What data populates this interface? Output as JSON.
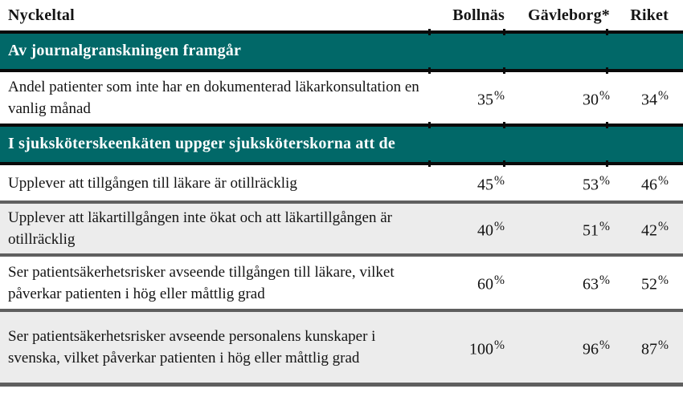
{
  "table": {
    "columns": [
      "Nyckeltal",
      "Bollnäs",
      "Gävleborg*",
      "Riket"
    ],
    "sections": [
      {
        "header": "Av journalgranskningen framgår",
        "rows": [
          {
            "label": "Andel patienter som inte har en dokumenterad läkarkonsultation en vanlig månad",
            "values": [
              "35%",
              "30%",
              "34%"
            ]
          }
        ]
      },
      {
        "header": "I sjuksköterskeenkäten uppger sjuksköterskorna att de",
        "rows": [
          {
            "label": "Upplever att tillgången till läkare är otillräcklig",
            "values": [
              "45%",
              "53%",
              "46%"
            ]
          },
          {
            "label": "Upplever att läkartillgången inte ökat och att läkartillgången är otillräcklig",
            "values": [
              "40%",
              "51%",
              "42%"
            ]
          },
          {
            "label": "Ser patientsäkerhetsrisker avseende tillgången till läkare, vilket påverkar patienten i hög eller måttlig grad",
            "values": [
              "60%",
              "63%",
              "52%"
            ]
          },
          {
            "label": "Ser patientsäkerhetsrisker avseende personalens kunskaper i svenska, vilket påverkar patienten i hög eller måttlig grad",
            "values": [
              "100%",
              "96%",
              "87%"
            ]
          }
        ]
      }
    ]
  },
  "colors": {
    "section_teal": "#016868",
    "band_border_black": "#0a0a0a",
    "row_separator_gray": "#5f5f5f",
    "alt_row_background": "#ececec",
    "section_text": "#ffffff",
    "body_text": "#141414"
  }
}
